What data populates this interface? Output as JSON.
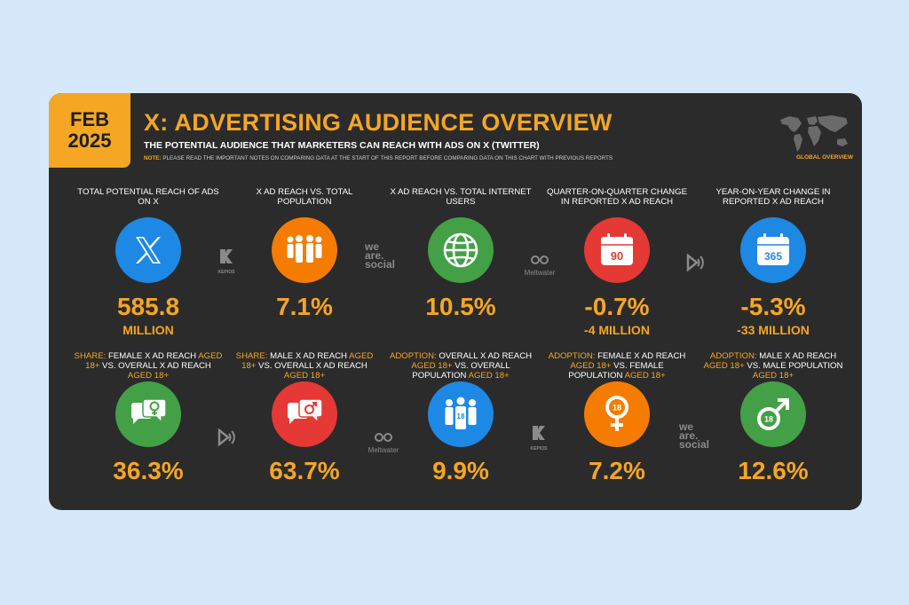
{
  "badge": {
    "month": "FEB",
    "year": "2025"
  },
  "header": {
    "title": "X: ADVERTISING AUDIENCE OVERVIEW",
    "subtitle": "THE POTENTIAL AUDIENCE THAT MARKETERS CAN REACH WITH ADS ON X (TWITTER)",
    "note_label": "NOTE:",
    "note_text": "PLEASE READ THE IMPORTANT NOTES ON COMPARING DATA AT THE START OF THIS REPORT BEFORE COMPARING DATA ON THIS CHART WITH PREVIOUS REPORTS",
    "global_label": "GLOBAL OVERVIEW"
  },
  "colors": {
    "accent": "#f5a623",
    "blue": "#1e88e5",
    "orange": "#f57c00",
    "green": "#43a047",
    "red": "#e53935"
  },
  "row1": [
    {
      "label": "TOTAL POTENTIAL REACH OF ADS ON X",
      "value": "585.8",
      "sub": "MILLION",
      "icon": "x-logo-icon",
      "color": "blue"
    },
    {
      "label": "X AD REACH vs. TOTAL POPULATION",
      "value": "7.1%",
      "sub": "",
      "icon": "people-icon",
      "color": "orange"
    },
    {
      "label": "X AD REACH vs. TOTAL INTERNET USERS",
      "value": "10.5%",
      "sub": "",
      "icon": "globe-icon",
      "color": "green"
    },
    {
      "label": "QUARTER-ON-QUARTER CHANGE IN REPORTED X AD REACH",
      "value": "-0.7%",
      "sub": "-4 MILLION",
      "icon": "calendar-90-icon",
      "color": "red",
      "badge": "90"
    },
    {
      "label": "YEAR-ON-YEAR CHANGE IN REPORTED X AD REACH",
      "value": "-5.3%",
      "sub": "-33 MILLION",
      "icon": "calendar-365-icon",
      "color": "blue",
      "badge": "365"
    }
  ],
  "row2": [
    {
      "pre": "SHARE:",
      "mid1": " FEMALE X AD REACH ",
      "hl1": "AGED 18+",
      "mid2": " vs. OVERALL X AD REACH ",
      "hl2": "AGED 18+",
      "value": "36.3%",
      "icon": "female-chat-icon",
      "color": "green"
    },
    {
      "pre": "SHARE:",
      "mid1": " MALE X AD REACH ",
      "hl1": "AGED 18+",
      "mid2": " vs. OVERALL X AD REACH ",
      "hl2": "AGED 18+",
      "value": "63.7%",
      "icon": "male-chat-icon",
      "color": "red"
    },
    {
      "pre": "ADOPTION:",
      "mid1": " OVERALL X AD REACH ",
      "hl1": "AGED 18+",
      "mid2": " vs. OVERALL POPULATION ",
      "hl2": "AGED 18+",
      "value": "9.9%",
      "icon": "adults-18-icon",
      "color": "blue"
    },
    {
      "pre": "ADOPTION:",
      "mid1": " FEMALE X AD REACH ",
      "hl1": "AGED 18+",
      "mid2": " vs. FEMALE POPULATION ",
      "hl2": "AGED 18+",
      "value": "7.2%",
      "icon": "female-18-icon",
      "color": "orange"
    },
    {
      "pre": "ADOPTION:",
      "mid1": " MALE X AD REACH ",
      "hl1": "AGED 18+",
      "mid2": " vs. MALE POPULATION ",
      "hl2": "AGED 18+",
      "value": "12.6%",
      "icon": "male-18-icon",
      "color": "green"
    }
  ],
  "logos": {
    "kepios": "KEPIOS",
    "wearesocial_1": "we",
    "wearesocial_2": "are.",
    "wearesocial_3": "social",
    "meltwater": "Meltwater",
    "age_badge": "18"
  }
}
